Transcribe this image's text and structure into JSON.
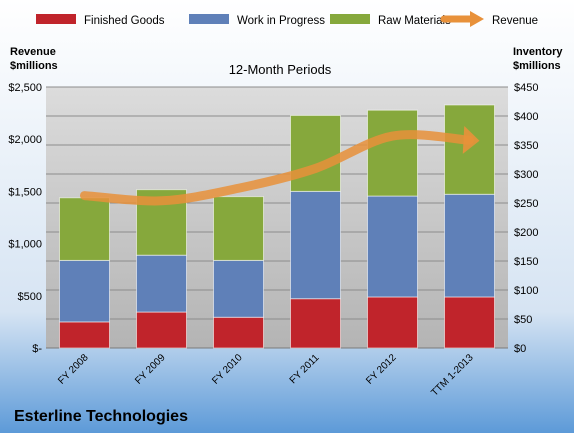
{
  "chart_data": {
    "type": "bar",
    "subtitle": "12-Month Periods",
    "company": "Esterline Technologies",
    "left_axis_title": [
      "Revenue",
      "$millions"
    ],
    "right_axis_title": [
      "Inventory",
      "$millions"
    ],
    "categories": [
      "FY 2008",
      "FY 2009",
      "FY 2010",
      "FY 2011",
      "FY 2012",
      "TTM 1-2013"
    ],
    "stacked": true,
    "series": [
      {
        "name": "Finished Goods",
        "axis": "right",
        "color": "#c0242b",
        "values": [
          45,
          62,
          53,
          85,
          88,
          88
        ]
      },
      {
        "name": "Work in Progress",
        "axis": "right",
        "color": "#5f80b8",
        "values": [
          106,
          98,
          98,
          185,
          174,
          177
        ]
      },
      {
        "name": "Raw Materials",
        "axis": "right",
        "color": "#86a83c",
        "values": [
          108,
          113,
          110,
          131,
          148,
          154
        ]
      }
    ],
    "line_series": {
      "name": "Revenue",
      "axis": "left",
      "color": "#e8913a",
      "values": [
        1460,
        1410,
        1530,
        1720,
        2030,
        1990
      ]
    },
    "left_axis": {
      "ylim": [
        0,
        2500
      ],
      "ticks": [
        0,
        500,
        1000,
        1500,
        2000,
        2500
      ],
      "tick_labels": [
        "$-",
        "$500",
        "$1,000",
        "$1,500",
        "$2,000",
        "$2,500"
      ]
    },
    "right_axis": {
      "ylim": [
        0,
        450
      ],
      "ticks": [
        0,
        50,
        100,
        150,
        200,
        250,
        300,
        350,
        400,
        450
      ],
      "tick_labels": [
        "$0",
        "$50",
        "$100",
        "$150",
        "$200",
        "$250",
        "$300",
        "$350",
        "$400",
        "$450"
      ]
    },
    "legend_position": "top",
    "grid": true
  }
}
